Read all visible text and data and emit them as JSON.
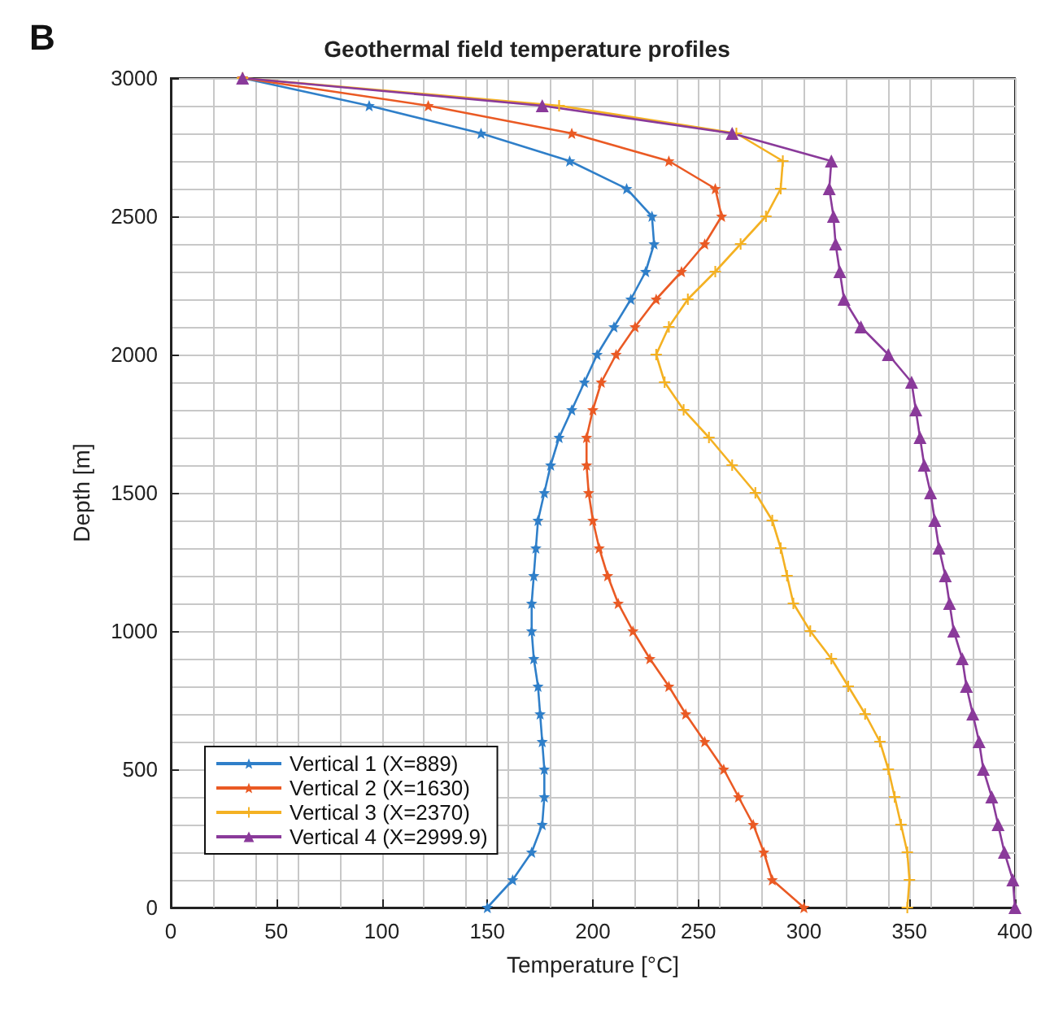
{
  "chart_data": {
    "type": "line",
    "title": "Geothermal field temperature profiles",
    "xlabel": "Temperature [°C]",
    "ylabel": "Depth [m]",
    "annotations": [
      "B"
    ],
    "xlim": [
      0,
      400
    ],
    "xticks": [
      0,
      50,
      100,
      150,
      200,
      250,
      300,
      350,
      400
    ],
    "ylim": [
      0,
      3000
    ],
    "yticks": [
      0,
      500,
      1000,
      1500,
      2000,
      2500,
      3000
    ],
    "grid": true,
    "legend": "bottom left",
    "series": [
      {
        "name": "Vertical 1 (X=889)",
        "color": "#2f7fc9",
        "marker": "star",
        "x": [
          150,
          162,
          171,
          176,
          177,
          177,
          176,
          175,
          174,
          172,
          171,
          171,
          172,
          173,
          174,
          177,
          180,
          184,
          190,
          196,
          202,
          210,
          218,
          225,
          229,
          228,
          216,
          189,
          147,
          94,
          34
        ],
        "values": [
          0,
          100,
          200,
          300,
          400,
          500,
          600,
          700,
          800,
          900,
          1000,
          1100,
          1200,
          1300,
          1400,
          1500,
          1600,
          1700,
          1800,
          1900,
          2000,
          2100,
          2200,
          2300,
          2400,
          2500,
          2600,
          2700,
          2800,
          2900,
          3000
        ]
      },
      {
        "name": "Vertical 2 (X=1630)",
        "color": "#ea5a24",
        "marker": "star",
        "x": [
          300,
          285,
          281,
          276,
          269,
          262,
          253,
          244,
          236,
          227,
          219,
          212,
          207,
          203,
          200,
          198,
          197,
          197,
          200,
          204,
          211,
          220,
          230,
          242,
          253,
          261,
          258,
          236,
          190,
          122,
          34
        ],
        "values": [
          0,
          100,
          200,
          300,
          400,
          500,
          600,
          700,
          800,
          900,
          1000,
          1100,
          1200,
          1300,
          1400,
          1500,
          1600,
          1700,
          1800,
          1900,
          2000,
          2100,
          2200,
          2300,
          2400,
          2500,
          2600,
          2700,
          2800,
          2900,
          3000
        ]
      },
      {
        "name": "Vertical 3 (X=2370)",
        "color": "#f4b122",
        "marker": "cross",
        "x": [
          349,
          350,
          349,
          346,
          343,
          340,
          336,
          329,
          321,
          313,
          303,
          295,
          292,
          289,
          285,
          277,
          266,
          255,
          243,
          234,
          230,
          236,
          245,
          258,
          270,
          282,
          289,
          290,
          268,
          184,
          34
        ],
        "values": [
          0,
          100,
          200,
          300,
          400,
          500,
          600,
          700,
          800,
          900,
          1000,
          1100,
          1200,
          1300,
          1400,
          1500,
          1600,
          1700,
          1800,
          1900,
          2000,
          2100,
          2200,
          2300,
          2400,
          2500,
          2600,
          2700,
          2800,
          2900,
          3000
        ]
      },
      {
        "name": "Vertical 4 (X=2999.9)",
        "color": "#8a3a9a",
        "marker": "triangle",
        "x": [
          400,
          399,
          395,
          392,
          389,
          385,
          383,
          380,
          377,
          375,
          371,
          369,
          367,
          364,
          362,
          360,
          357,
          355,
          353,
          351,
          340,
          327,
          319,
          317,
          315,
          314,
          312,
          313,
          266,
          176,
          34
        ],
        "values": [
          0,
          100,
          200,
          300,
          400,
          500,
          600,
          700,
          800,
          900,
          1000,
          1100,
          1200,
          1300,
          1400,
          1500,
          1600,
          1700,
          1800,
          1900,
          2000,
          2100,
          2200,
          2300,
          2400,
          2500,
          2600,
          2700,
          2800,
          2900,
          3000
        ]
      }
    ]
  }
}
